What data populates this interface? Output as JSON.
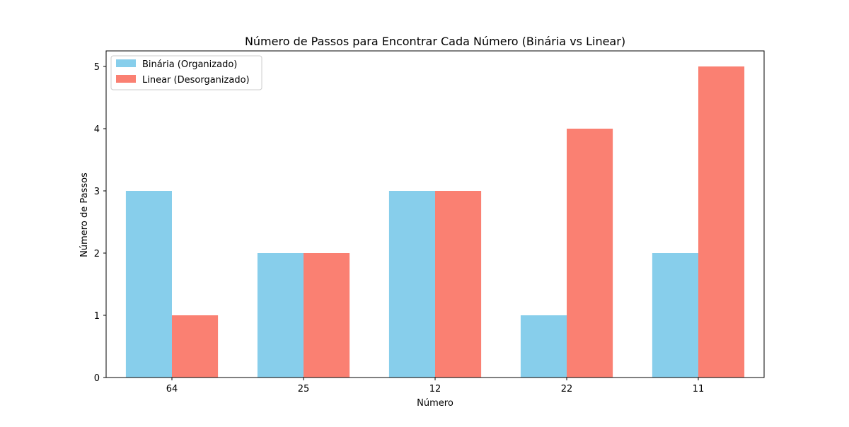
{
  "chart_data": {
    "type": "bar",
    "title": "Número de Passos para Encontrar Cada Número (Binária vs Linear)",
    "xlabel": "Número",
    "ylabel": "Número de Passos",
    "categories": [
      "64",
      "25",
      "12",
      "22",
      "11"
    ],
    "series": [
      {
        "name": "Binária (Organizado)",
        "values": [
          3,
          2,
          3,
          1,
          2
        ],
        "color": "#87ceeb"
      },
      {
        "name": "Linear (Desorganizado)",
        "values": [
          1,
          2,
          3,
          4,
          5
        ],
        "color": "#fa8072"
      }
    ],
    "ylim": [
      0,
      5.25
    ],
    "yticks": [
      0,
      1,
      2,
      3,
      4,
      5
    ],
    "grid": false,
    "legend_position": "top-left"
  }
}
